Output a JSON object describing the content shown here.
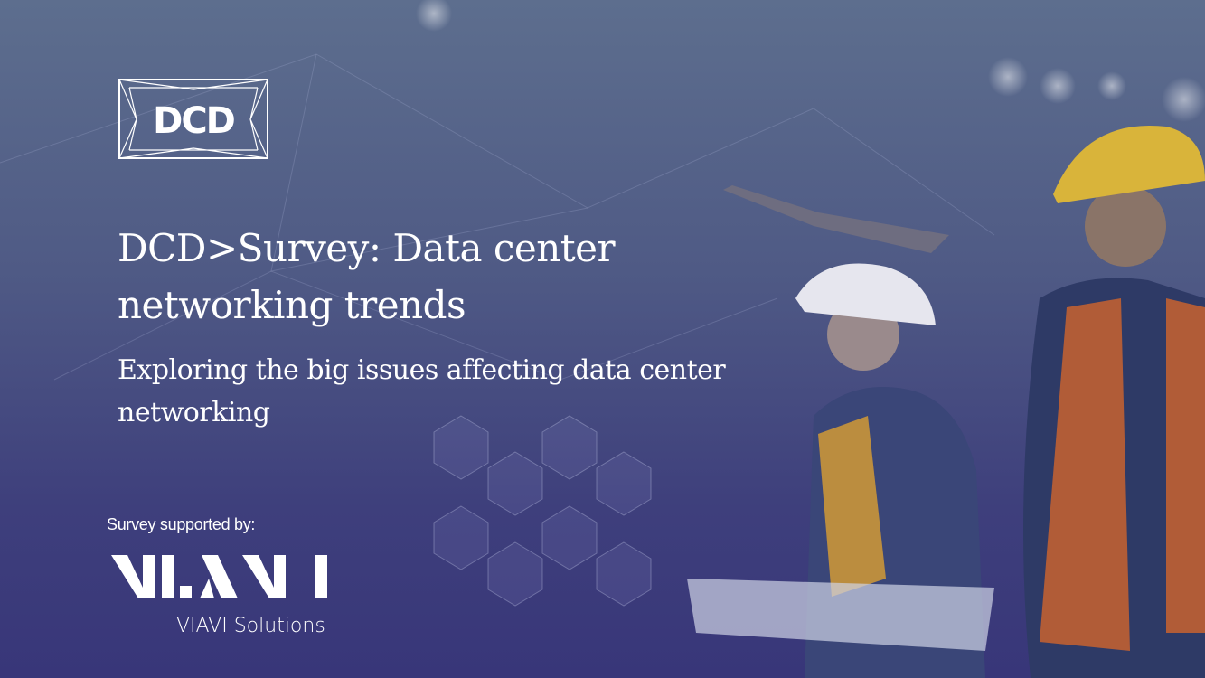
{
  "logo": {
    "text": "DCD"
  },
  "title": "DCD>Survey: Data center networking trends",
  "subtitle": "Exploring the big issues affecting data center networking",
  "sponsor": {
    "label": "Survey supported by:",
    "logo_text": "VIAVI",
    "name": "VIAVI Solutions"
  },
  "colors": {
    "background_top": "#5d6e8e",
    "background_bottom": "#383679",
    "text": "#ffffff"
  }
}
